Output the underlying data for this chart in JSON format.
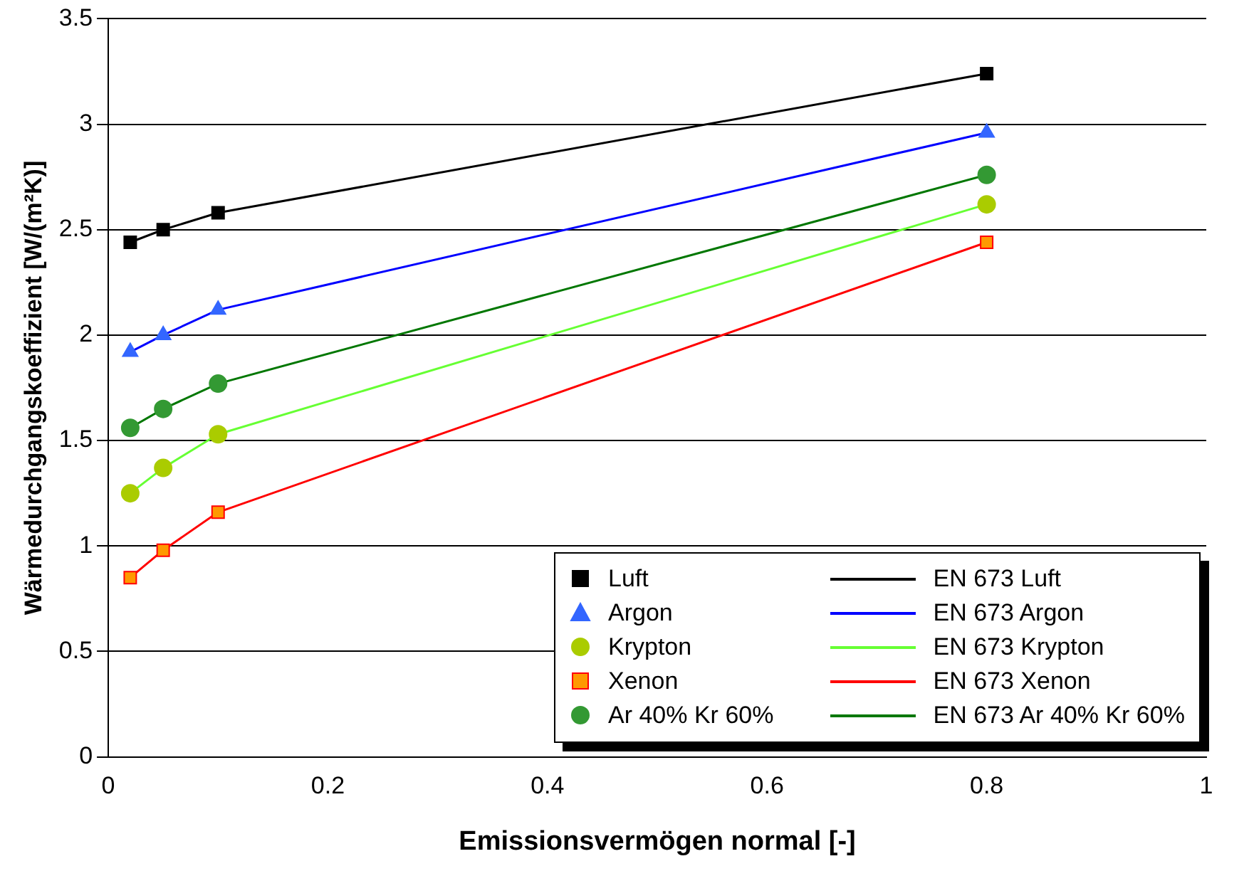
{
  "chart_data": {
    "type": "line",
    "xlabel": "Emissionsvermögen normal [-]",
    "ylabel": "Wärmedurchgangskoeffizient [W/(m²K)]",
    "x": [
      0.02,
      0.05,
      0.1,
      0.8
    ],
    "series": [
      {
        "name": "Luft",
        "type": "scatter",
        "marker": "square",
        "color": "#000000",
        "values": [
          2.44,
          2.5,
          2.58,
          3.24
        ]
      },
      {
        "name": "Argon",
        "type": "scatter",
        "marker": "triangle",
        "color": "#3366ff",
        "values": [
          1.92,
          2.0,
          2.12,
          2.96
        ]
      },
      {
        "name": "Krypton",
        "type": "scatter",
        "marker": "circle",
        "color": "#aacc00",
        "values": [
          1.25,
          1.37,
          1.53,
          2.62
        ]
      },
      {
        "name": "Xenon",
        "type": "scatter",
        "marker": "square",
        "color": "#ff9900",
        "values": [
          0.85,
          0.98,
          1.16,
          2.44
        ]
      },
      {
        "name": "Ar 40% Kr 60%",
        "type": "scatter",
        "marker": "circle",
        "color": "#339933",
        "values": [
          1.56,
          1.65,
          1.77,
          2.76
        ]
      },
      {
        "name": "EN 673  Luft",
        "marker": "none",
        "color": "#000000",
        "values": [
          2.44,
          2.5,
          2.58,
          3.24
        ]
      },
      {
        "name": "EN 673 Argon",
        "marker": "none",
        "color": "#0000ff",
        "values": [
          1.92,
          2.0,
          2.12,
          2.96
        ]
      },
      {
        "name": "EN 673 Krypton",
        "marker": "none",
        "color": "#66ff33",
        "values": [
          1.25,
          1.37,
          1.53,
          2.62
        ]
      },
      {
        "name": "EN 673 Xenon",
        "marker": "none",
        "color": "#ff0000",
        "values": [
          0.85,
          0.98,
          1.16,
          2.44
        ]
      },
      {
        "name": "EN 673 Ar 40% Kr 60%",
        "marker": "none",
        "color": "#007700",
        "values": [
          1.56,
          1.65,
          1.77,
          2.76
        ]
      }
    ],
    "xlim": [
      0,
      1
    ],
    "xticks": [
      0,
      0.2,
      0.4,
      0.6,
      0.8,
      1
    ],
    "ylim": [
      0,
      3.5
    ],
    "yticks": [
      0,
      0.5,
      1,
      1.5,
      2,
      2.5,
      3,
      3.5
    ],
    "grid": "y",
    "legend": "bottom right"
  }
}
